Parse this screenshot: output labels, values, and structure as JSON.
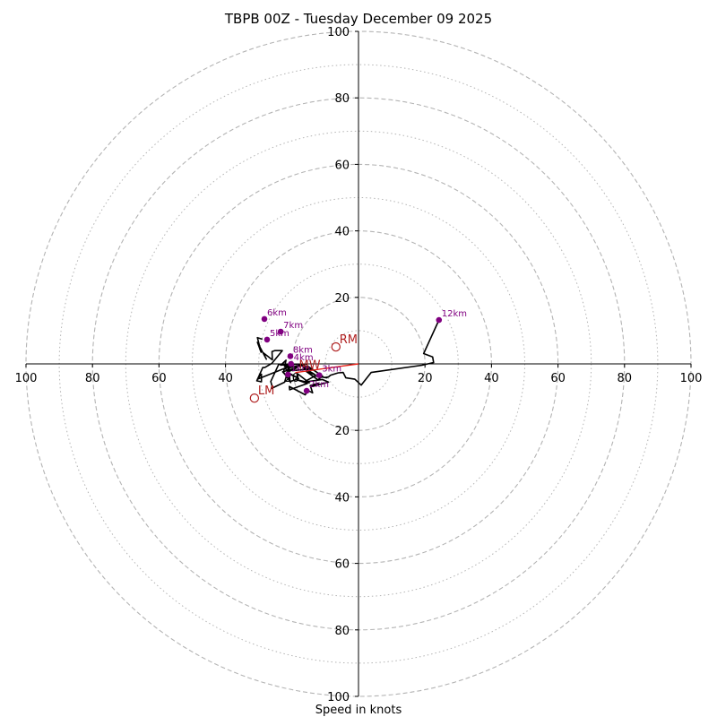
{
  "chart_data": {
    "type": "hodograph",
    "title": "TBPB 00Z - Tuesday December 09 2025",
    "xlabel": "Speed in knots",
    "units": "knots",
    "range": [
      -100,
      100
    ],
    "ring_major_values": [
      20,
      40,
      60,
      80,
      100
    ],
    "ring_minor_values": [
      10,
      30,
      50,
      70,
      90
    ],
    "x_ticks": [
      {
        "value": -100,
        "label": "100"
      },
      {
        "value": -80,
        "label": "80"
      },
      {
        "value": -60,
        "label": "60"
      },
      {
        "value": -40,
        "label": "40"
      },
      {
        "value": -20,
        "label": "20"
      },
      {
        "value": 20,
        "label": "20"
      },
      {
        "value": 40,
        "label": "40"
      },
      {
        "value": 60,
        "label": "60"
      },
      {
        "value": 80,
        "label": "80"
      },
      {
        "value": 100,
        "label": "100"
      }
    ],
    "y_ticks": [
      {
        "value": 100,
        "label": "100"
      },
      {
        "value": 80,
        "label": "80"
      },
      {
        "value": 60,
        "label": "60"
      },
      {
        "value": 40,
        "label": "40"
      },
      {
        "value": 20,
        "label": "20"
      },
      {
        "value": -20,
        "label": "20"
      },
      {
        "value": -40,
        "label": "40"
      },
      {
        "value": -60,
        "label": "60"
      },
      {
        "value": -80,
        "label": "80"
      },
      {
        "value": -100,
        "label": "100"
      }
    ],
    "wind_profile": {
      "name": "Hodograph trace",
      "color": "#000000",
      "u": [
        24.2,
        19.6,
        22.3,
        22.6,
        19.1,
        3.8,
        0.8,
        -1.1,
        -3.8,
        -4.6,
        -6.1,
        -8.4,
        -9.0,
        -10.0,
        -9.5,
        -13.1,
        -16.5,
        -10.9,
        -9.0,
        -14.0,
        -12.0,
        -14.5,
        -13.8,
        -15.2,
        -16.0,
        -20.8,
        -20.7,
        -15.4,
        -19.0,
        -14.8,
        -18.4,
        -18.6,
        -20.6,
        -20.8,
        -18.0,
        -21.6,
        -18.4,
        -22.8,
        -21.6,
        -20.4,
        -22.5,
        -22.4,
        -19.6,
        -15.4,
        -15.4,
        -15.4,
        -10.8,
        -12.2,
        -15.8,
        -13.0,
        -16.6,
        -13.2,
        -15.4,
        -17.0,
        -15.4,
        -21.2,
        -17.0,
        -16.7,
        -22.0,
        -23.4,
        -21.8,
        -22.2,
        -20.6,
        -22.6,
        -20.8,
        -21.8,
        -24.0,
        -26.4,
        -26.0,
        -26.2,
        -22.2,
        -20.9,
        -30.4,
        -29.2,
        -29.2,
        -30.6,
        -28.8,
        -28.2,
        -26.0,
        -22.9,
        -25.2,
        -26.0,
        -25.9,
        -28.6,
        -27.7,
        -30.4,
        -29.3,
        -30.4,
        -28.9
      ],
      "v": [
        13.2,
        3.1,
        2.1,
        0.4,
        -0.4,
        -2.6,
        -6.4,
        -4.6,
        -4.2,
        -2.6,
        -2.7,
        -3.4,
        -3.9,
        -4.1,
        -4.2,
        -3.6,
        -5.5,
        -4.7,
        -5.5,
        -6.8,
        -5.8,
        -6.5,
        -8.7,
        -8.0,
        -9.3,
        -6.8,
        -7.8,
        -5.9,
        -4.6,
        -5.7,
        -2.9,
        -4.7,
        -5.3,
        -2.8,
        -4.4,
        -2.6,
        -1.1,
        -2.4,
        -3.7,
        -5.6,
        -2.6,
        -1.5,
        -2.0,
        -1.6,
        -0.6,
        -0.6,
        -3.7,
        -4.8,
        -2.2,
        -3.3,
        -1.1,
        -2.0,
        -0.9,
        -0.6,
        0.0,
        -1.2,
        -0.5,
        -0.1,
        -0.2,
        -0.4,
        1.1,
        -0.8,
        -0.8,
        -0.1,
        -1.4,
        -0.5,
        -0.1,
        -5.3,
        -6.6,
        -7.4,
        -5.5,
        -0.8,
        -4.6,
        -3.1,
        -5.4,
        -5.1,
        -1.1,
        -1.1,
        0.2,
        4.0,
        4.0,
        3.7,
        1.2,
        3.3,
        1.4,
        6.5,
        3.5,
        7.9,
        7.4
      ]
    },
    "height_markers": [
      {
        "label": "1km",
        "u": -21.2,
        "v": -3.2
      },
      {
        "label": "2km",
        "u": -15.6,
        "v": -8.1
      },
      {
        "label": "3km",
        "u": -11.8,
        "v": -3.4
      },
      {
        "label": "4km",
        "u": -20.3,
        "v": 0.0
      },
      {
        "label": "5km",
        "u": -27.5,
        "v": 7.3
      },
      {
        "label": "6km",
        "u": -28.3,
        "v": 13.5
      },
      {
        "label": "7km",
        "u": -23.4,
        "v": 9.7
      },
      {
        "label": "8km",
        "u": -20.5,
        "v": 2.3
      },
      {
        "label": "12km",
        "u": 24.2,
        "v": 13.2
      }
    ],
    "storm_motion": [
      {
        "label": "RM",
        "u": -6.8,
        "v": 5.1
      },
      {
        "label": "LM",
        "u": -31.3,
        "v": -10.3
      },
      {
        "label": "MW",
        "u": -19.0,
        "v": -2.6
      }
    ],
    "shear_vector": {
      "color": "#e8231b",
      "from": {
        "u": -19.0,
        "v": -2.6
      },
      "to": {
        "u": 0.0,
        "v": 0.0
      }
    },
    "colors": {
      "trace": "#000000",
      "height_marker": "#800080",
      "storm_motion": "#b02121",
      "shear": "#e8231b",
      "grid": "#b4b4b4",
      "axis": "#000000"
    }
  }
}
